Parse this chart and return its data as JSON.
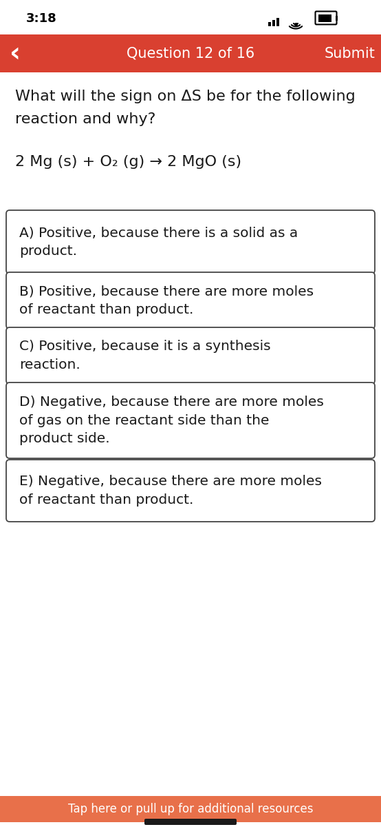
{
  "time": "3:18",
  "nav_bar_color": "#D94030",
  "nav_text": "Question 12 of 16",
  "nav_submit": "Submit",
  "question_line1": "What will the sign on ΔS be for the following",
  "question_line2": "reaction and why?",
  "equation": "2 Mg (s) + O₂ (g) → 2 MgO (s)",
  "options": [
    "A) Positive, because there is a solid as a\nproduct.",
    "B) Positive, because there are more moles\nof reactant than product.",
    "C) Positive, because it is a synthesis\nreaction.",
    "D) Negative, because there are more moles\nof gas on the reactant side than the\nproduct side.",
    "E) Negative, because there are more moles\nof reactant than product."
  ],
  "background_color": "#FFFFFF",
  "text_color": "#1A1A1A",
  "box_border_color": "#444444",
  "box_bg_color": "#FFFFFF",
  "bottom_bar_color": "#E8704A",
  "bottom_bar_text": "Tap here or pull up for additional resources",
  "bottom_indicator_color": "#1A1A1A",
  "status_bar_color": "#FFFFFF",
  "status_time_color": "#000000",
  "fig_width": 5.54,
  "fig_height": 12.0,
  "dpi": 100
}
